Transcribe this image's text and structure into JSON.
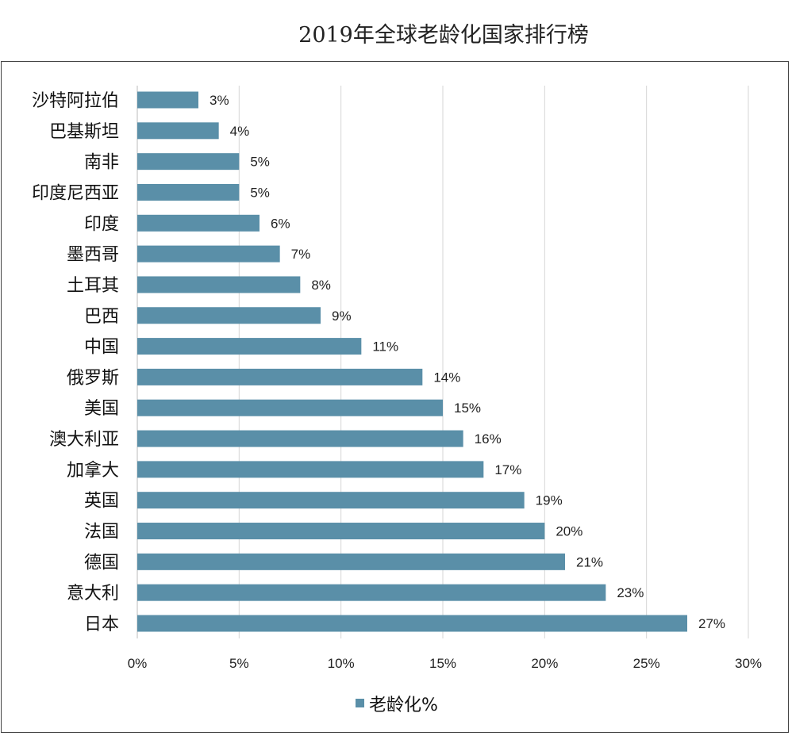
{
  "chart_data": {
    "type": "bar",
    "orientation": "horizontal",
    "title": "2019年全球老龄化国家排行榜",
    "categories": [
      "沙特阿拉伯",
      "巴基斯坦",
      "南非",
      "印度尼西亚",
      "印度",
      "墨西哥",
      "土耳其",
      "巴西",
      "中国",
      "俄罗斯",
      "美国",
      "澳大利亚",
      "加拿大",
      "英国",
      "法国",
      "德国",
      "意大利",
      "日本"
    ],
    "series": [
      {
        "name": "老龄化%",
        "values": [
          3,
          4,
          5,
          5,
          6,
          7,
          8,
          9,
          11,
          14,
          15,
          16,
          17,
          19,
          20,
          21,
          23,
          27
        ],
        "color": "#5a8fa8"
      }
    ],
    "data_labels": [
      "3%",
      "4%",
      "5%",
      "5%",
      "6%",
      "7%",
      "8%",
      "9%",
      "11%",
      "14%",
      "15%",
      "16%",
      "17%",
      "19%",
      "20%",
      "21%",
      "23%",
      "27%"
    ],
    "xlim": [
      0,
      30
    ],
    "x_ticks": [
      0,
      5,
      10,
      15,
      20,
      25,
      30
    ],
    "x_tick_labels": [
      "0%",
      "5%",
      "10%",
      "15%",
      "20%",
      "25%",
      "30%"
    ],
    "grid": "vertical",
    "legend": "bottom"
  }
}
